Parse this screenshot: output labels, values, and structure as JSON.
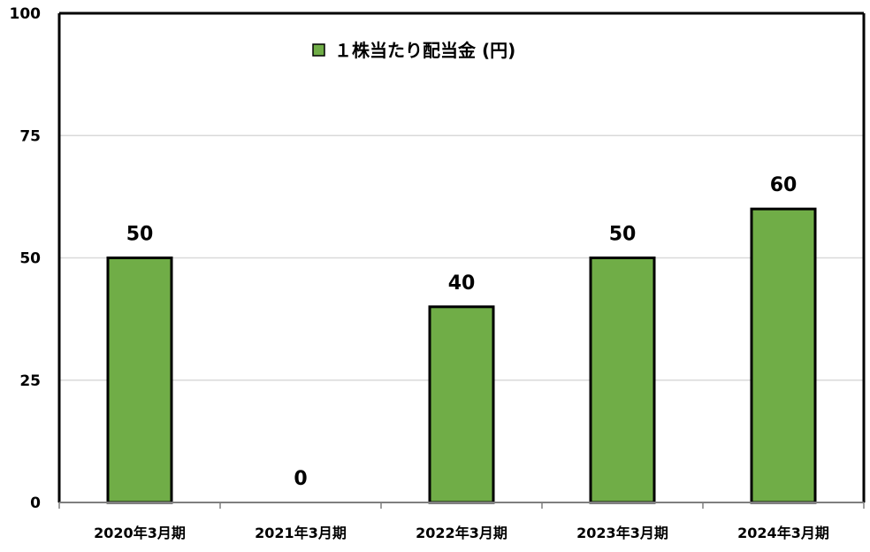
{
  "chart_data": {
    "type": "bar",
    "categories": [
      "2020年3月期",
      "2021年3月期",
      "2022年3月期",
      "2023年3月期",
      "2024年3月期"
    ],
    "series": [
      {
        "name": "１株当たり配当金 (円)",
        "values": [
          50,
          0,
          40,
          50,
          60
        ],
        "color": "#70AD47"
      }
    ],
    "data_labels": [
      "50",
      "0",
      "40",
      "50",
      "60"
    ],
    "y_ticks": [
      "0",
      "25",
      "50",
      "75",
      "100"
    ],
    "ylim": [
      0,
      100
    ],
    "grid": true,
    "legend_position": "top-center",
    "bar_edge_color": "#000000",
    "grid_color": "#D9D9D9"
  }
}
